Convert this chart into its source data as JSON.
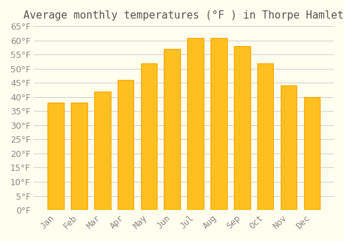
{
  "title": "Average monthly temperatures (°F ) in Thorpe Hamlet",
  "months": [
    "Jan",
    "Feb",
    "Mar",
    "Apr",
    "May",
    "Jun",
    "Jul",
    "Aug",
    "Sep",
    "Oct",
    "Nov",
    "Dec"
  ],
  "values": [
    38,
    38,
    42,
    46,
    52,
    57,
    61,
    61,
    58,
    52,
    44,
    40
  ],
  "bar_color_face": "#FFC020",
  "bar_color_edge": "#FFA000",
  "background_color": "#FFFFF0",
  "grid_color": "#CCCCCC",
  "text_color": "#888888",
  "ylim": [
    0,
    65
  ],
  "ytick_step": 5,
  "title_fontsize": 11,
  "tick_fontsize": 9
}
